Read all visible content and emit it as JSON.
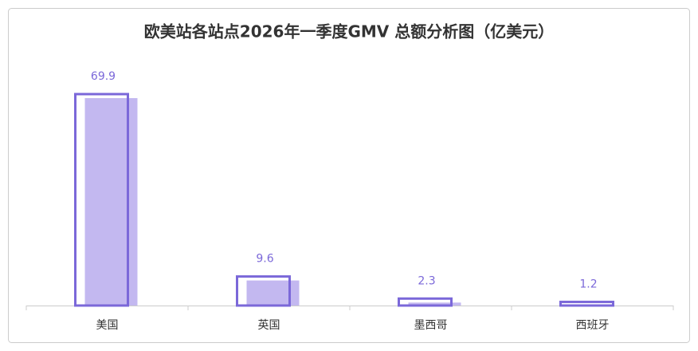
{
  "chart_data": {
    "type": "bar",
    "title": "欧美站各站点2026年一季度GMV 总额分析图（亿美元）",
    "categories": [
      "美国",
      "英国",
      "墨西哥",
      "西班牙"
    ],
    "values": [
      69.9,
      9.6,
      2.3,
      1.2
    ],
    "color": "#c3b8f0",
    "edge_color": "#7b68d9",
    "ylim": [
      0,
      70
    ]
  }
}
